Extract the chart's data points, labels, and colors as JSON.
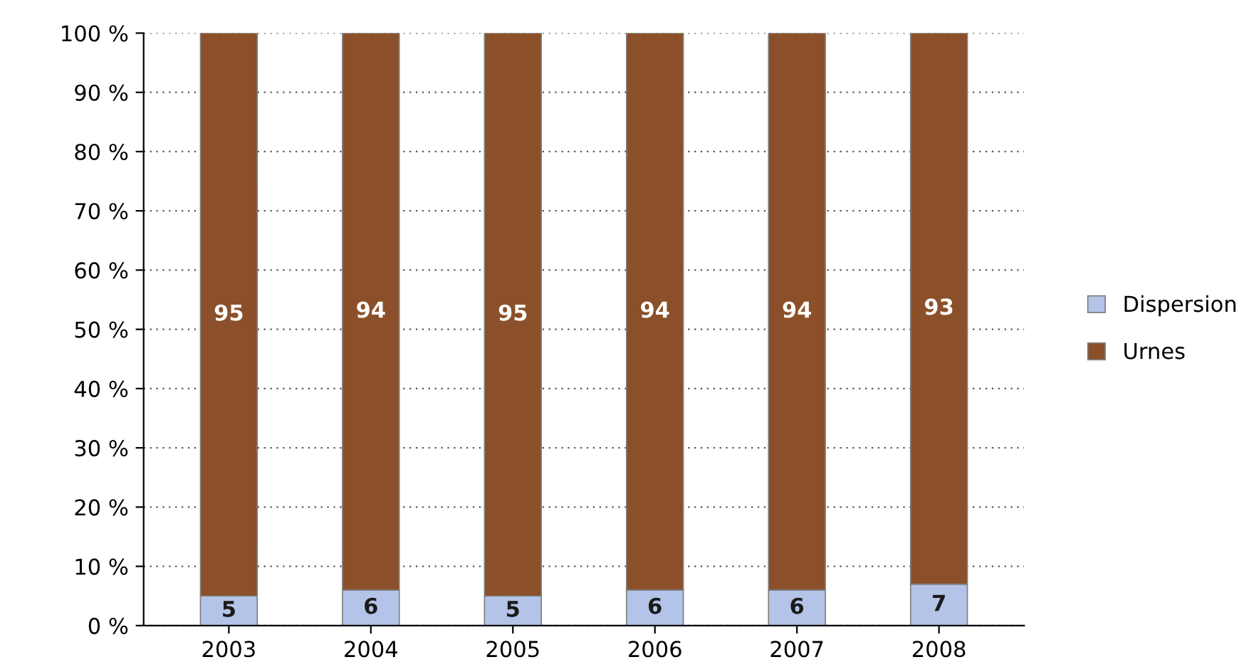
{
  "chart_data": {
    "type": "bar",
    "stacked": true,
    "categories": [
      "2003",
      "2004",
      "2005",
      "2006",
      "2007",
      "2008"
    ],
    "series": [
      {
        "name": "Dispersion",
        "color": "#b4c4e8",
        "values": [
          5,
          6,
          5,
          6,
          6,
          7
        ]
      },
      {
        "name": "Urnes",
        "color": "#8b5029",
        "values": [
          95,
          94,
          95,
          94,
          94,
          93
        ]
      }
    ],
    "ylim": [
      0,
      100
    ],
    "yticks": [
      {
        "value": 0,
        "label": "0 %"
      },
      {
        "value": 10,
        "label": "10 %"
      },
      {
        "value": 20,
        "label": "20 %"
      },
      {
        "value": 30,
        "label": "30 %"
      },
      {
        "value": 40,
        "label": "40 %"
      },
      {
        "value": 50,
        "label": "50 %"
      },
      {
        "value": 60,
        "label": "60 %"
      },
      {
        "value": 70,
        "label": "70 %"
      },
      {
        "value": 80,
        "label": "80 %"
      },
      {
        "value": 90,
        "label": "90 %"
      },
      {
        "value": 100,
        "label": "100 %"
      }
    ],
    "grid": "y",
    "legend": "right",
    "data_labels": true
  }
}
